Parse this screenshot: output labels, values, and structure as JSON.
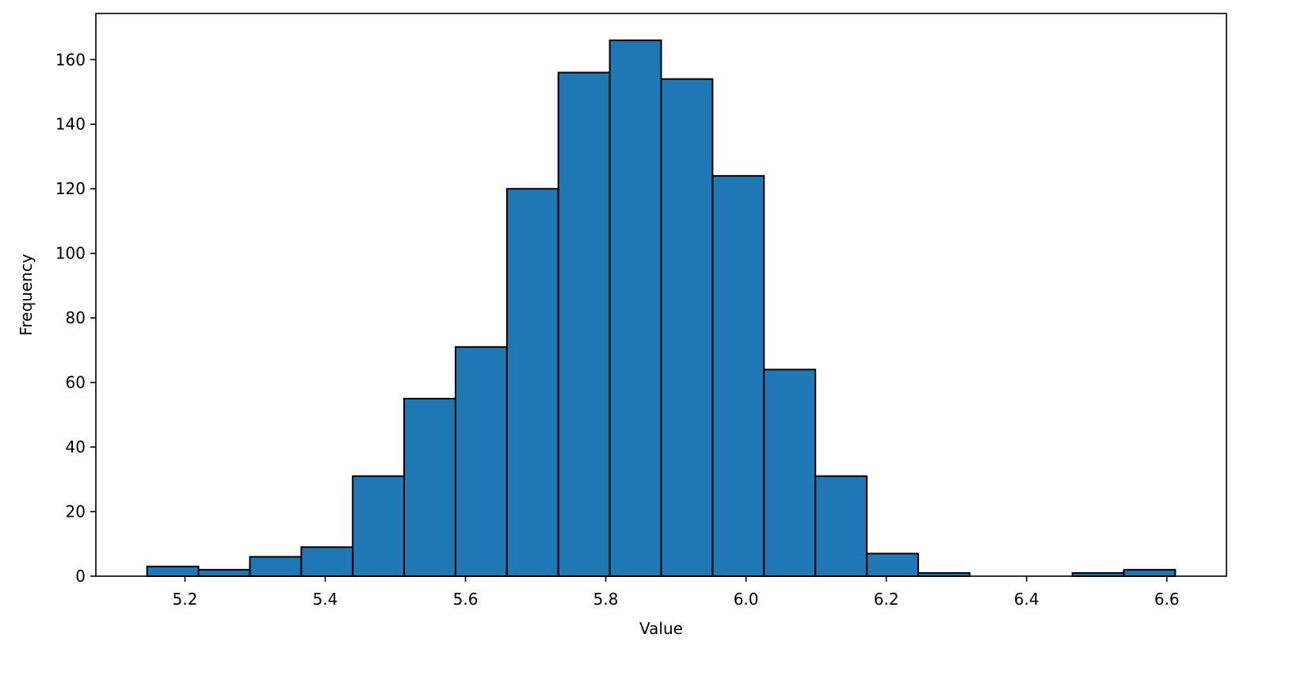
{
  "chart_data": {
    "type": "bar",
    "title": "",
    "xlabel": "Value",
    "ylabel": "Frequency",
    "bin_edges": [
      5.146,
      5.2193,
      5.2926,
      5.3659,
      5.4392,
      5.5125,
      5.5858,
      5.6591,
      5.7324,
      5.8057,
      5.879,
      5.9523,
      6.0256,
      6.0989,
      6.1722,
      6.2455,
      6.3188,
      6.3921,
      6.4654,
      6.5387,
      6.612
    ],
    "values": [
      3,
      2,
      6,
      9,
      31,
      55,
      71,
      120,
      156,
      166,
      154,
      124,
      64,
      31,
      7,
      1,
      0,
      0,
      1,
      2
    ],
    "xlim": [
      5.073,
      6.685
    ],
    "ylim": [
      0,
      174.3
    ],
    "xticks": [
      5.2,
      5.4,
      5.6,
      5.8,
      6.0,
      6.2,
      6.4,
      6.6
    ],
    "xtick_labels": [
      "5.2",
      "5.4",
      "5.6",
      "5.8",
      "6.0",
      "6.2",
      "6.4",
      "6.6"
    ],
    "yticks": [
      0,
      20,
      40,
      60,
      80,
      100,
      120,
      140,
      160
    ],
    "ytick_labels": [
      "0",
      "20",
      "40",
      "60",
      "80",
      "100",
      "120",
      "140",
      "160"
    ],
    "grid": false,
    "bar_color": "#1f77b4",
    "edge_color": "#000000"
  }
}
